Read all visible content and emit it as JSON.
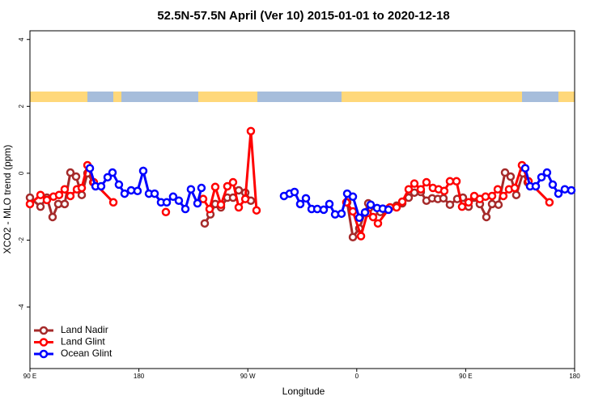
{
  "chart_data": {
    "type": "line",
    "title": "52.5N-57.5N April (Ver 10)   2015-01-01 to 2020-12-18",
    "x_label": "Longitude",
    "y_label": "XCO2 - MLO trend (ppm)",
    "xlim": [
      90,
      540
    ],
    "xticks": [
      {
        "value": 90,
        "label": "90 E"
      },
      {
        "value": 180,
        "label": "180"
      },
      {
        "value": 270,
        "label": "90 W"
      },
      {
        "value": 360,
        "label": "0"
      },
      {
        "value": 450,
        "label": "90 E"
      },
      {
        "value": 540,
        "label": "180"
      }
    ],
    "ylim": [
      -5.84,
      4.26
    ],
    "yticks": [
      -4,
      -2,
      0,
      2,
      4
    ],
    "legend": "lower left",
    "series": [
      {
        "name": "Land Nadir",
        "color": "#a52a2a",
        "x": [
          90,
          98.7,
          104.0,
          108.7,
          113.4,
          118.7,
          123.4,
          128.1,
          132.8,
          137.5,
          142.2,
          null,
          234.4,
          239.1,
          243.1,
          247.8,
          253.1,
          257.8,
          262.5,
          267.9,
          272.5,
          null,
          352.1,
          356.8,
          362.1,
          369.5,
          374.2,
          379.5,
          386.9,
          392.9,
          397.6,
          402.9,
          407.6,
          412.9,
          417.6,
          422.3,
          427.0,
          431.6,
          437.0,
          443.0,
          447.7,
          452.4,
          457.1,
          461.7,
          467.1,
          471.8,
          477.1,
          482.5,
          487.1,
          491.8,
          497.2,
          501.2
        ],
        "values": [
          -0.73,
          -1.0,
          -0.73,
          -1.31,
          -0.92,
          -0.92,
          0.02,
          -0.1,
          -0.65,
          0.0,
          -0.27,
          null,
          -1.5,
          -1.23,
          -0.92,
          -1.02,
          -0.73,
          -0.73,
          -0.51,
          -0.58,
          -0.82,
          null,
          -0.87,
          -1.91,
          -1.65,
          -0.9,
          -1.16,
          -1.16,
          -1.04,
          -0.97,
          -0.9,
          -0.73,
          -0.58,
          -0.56,
          -0.82,
          -0.75,
          -0.77,
          -0.75,
          -0.94,
          -0.77,
          -0.73,
          -1.0,
          -0.73,
          -0.92,
          -1.31,
          -0.92,
          -0.94,
          0.02,
          -0.1,
          -0.65,
          0.0,
          -0.27
        ]
      },
      {
        "name": "Land Glint",
        "color": "#ff0000",
        "x": [
          90,
          98.7,
          104.0,
          109.4,
          114.1,
          118.7,
          123.4,
          128.8,
          132.8,
          137.5,
          142.8,
          158.9,
          null,
          202.3,
          null,
          233.1,
          238.4,
          243.1,
          247.8,
          253.1,
          257.8,
          262.5,
          267.9,
          272.5,
          277.2,
          null,
          351.4,
          356.8,
          363.5,
          368.8,
          373.5,
          377.5,
          387.5,
          392.9,
          397.6,
          402.9,
          407.6,
          412.9,
          417.6,
          422.9,
          427.6,
          432.3,
          437.0,
          442.4,
          447.0,
          452.4,
          457.1,
          461.7,
          466.4,
          471.8,
          476.5,
          481.1,
          485.8,
          490.5,
          496.5,
          501.9,
          519.2
        ],
        "values": [
          -0.92,
          -0.65,
          -0.8,
          -0.7,
          -0.65,
          -0.48,
          -0.68,
          -0.48,
          -0.44,
          0.24,
          -0.27,
          -0.87,
          null,
          -1.16,
          null,
          -0.77,
          -1.07,
          -0.41,
          -0.94,
          -0.39,
          -0.27,
          -1.02,
          -0.77,
          1.26,
          -1.11,
          null,
          -0.87,
          -1.14,
          -1.88,
          -1.19,
          -1.31,
          -1.5,
          -1.02,
          -1.02,
          -0.85,
          -0.48,
          -0.31,
          -0.48,
          -0.27,
          -0.44,
          -0.48,
          -0.53,
          -0.24,
          -0.24,
          -1.0,
          -0.87,
          -0.68,
          -0.77,
          -0.7,
          -0.68,
          -0.48,
          -0.68,
          -0.48,
          -0.44,
          0.24,
          -0.24,
          -0.87
        ]
      },
      {
        "name": "Ocean Glint",
        "color": "#0000ff",
        "x": [
          139.5,
          144.2,
          148.8,
          154.2,
          158.2,
          163.5,
          168.2,
          173.6,
          178.9,
          183.6,
          188.3,
          193.0,
          198.3,
          203.0,
          208.3,
          213.0,
          218.4,
          223.0,
          228.4,
          231.7,
          null,
          299.9,
          304.6,
          308.6,
          313.3,
          318.0,
          322.7,
          327.4,
          332.7,
          337.4,
          342.1,
          347.4,
          352.1,
          356.8,
          362.1,
          366.8,
          371.5,
          376.8,
          381.5,
          386.2,
          null,
          499.2,
          503.2,
          507.9,
          512.6,
          517.2,
          521.9,
          526.6,
          531.9,
          537.3
        ],
        "values": [
          0.15,
          -0.39,
          -0.39,
          -0.12,
          0.02,
          -0.34,
          -0.61,
          -0.51,
          -0.53,
          0.07,
          -0.61,
          -0.61,
          -0.87,
          -0.87,
          -0.7,
          -0.82,
          -1.07,
          -0.48,
          -0.9,
          -0.44,
          null,
          -0.68,
          -0.61,
          -0.56,
          -0.92,
          -0.75,
          -1.07,
          -1.07,
          -1.09,
          -0.92,
          -1.23,
          -1.21,
          -0.61,
          -0.7,
          -1.33,
          -1.17,
          -0.94,
          -1.04,
          -1.06,
          -1.09,
          null,
          0.15,
          -0.39,
          -0.39,
          -0.12,
          0.02,
          -0.34,
          -0.61,
          -0.48,
          -0.51
        ]
      }
    ]
  }
}
